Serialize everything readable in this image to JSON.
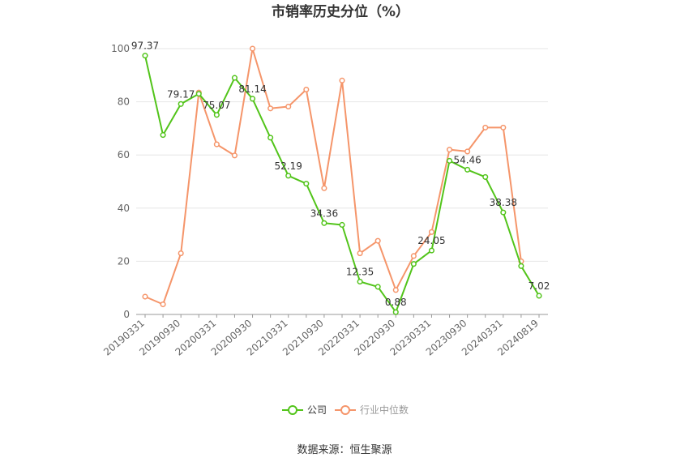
{
  "chart_data": {
    "type": "line",
    "title": "市销率历史分位（%）",
    "ylim": [
      0,
      100
    ],
    "yticks": [
      0,
      20,
      40,
      60,
      80,
      100
    ],
    "x": [
      "20190331",
      "20190630",
      "20190930",
      "20191231",
      "20200331",
      "20200630",
      "20200930",
      "20201231",
      "20210331",
      "20210630",
      "20210930",
      "20211231",
      "20220331",
      "20220630",
      "20220930",
      "20221231",
      "20230331",
      "20230630",
      "20230930",
      "20231231",
      "20240331",
      "20240630",
      "20240819"
    ],
    "xtick_labels": [
      "20190331",
      "20190930",
      "20200331",
      "20200930",
      "20210331",
      "20210930",
      "20220331",
      "20220930",
      "20230331",
      "20230930",
      "20240331",
      "20240819"
    ],
    "grid": true,
    "legend_position": "bottom",
    "series": [
      {
        "name": "公司",
        "color": "#52c41a",
        "values": [
          97.37,
          67.5,
          79.17,
          83.0,
          75.07,
          89.0,
          81.14,
          66.5,
          52.19,
          49.2,
          34.36,
          33.7,
          12.35,
          10.4,
          0.88,
          19.0,
          24.05,
          57.8,
          54.46,
          51.7,
          38.38,
          18.2,
          7.02
        ],
        "labels": {
          "0": "97.37",
          "2": "79.17",
          "4": "75.07",
          "6": "81.14",
          "8": "52.19",
          "10": "34.36",
          "12": "12.35",
          "14": "0.88",
          "16": "24.05",
          "18": "54.46",
          "20": "38.38",
          "22": "7.02"
        }
      },
      {
        "name": "行业中位数",
        "color": "#f5956a",
        "values": [
          6.7,
          3.8,
          23.0,
          83.5,
          64.0,
          59.8,
          100.0,
          77.5,
          78.2,
          84.6,
          47.5,
          88.0,
          23.0,
          27.7,
          9.2,
          22.0,
          31.0,
          62.0,
          61.3,
          70.3,
          70.3,
          20.0,
          null
        ]
      }
    ]
  },
  "source_text": "数据来源：恒生聚源"
}
